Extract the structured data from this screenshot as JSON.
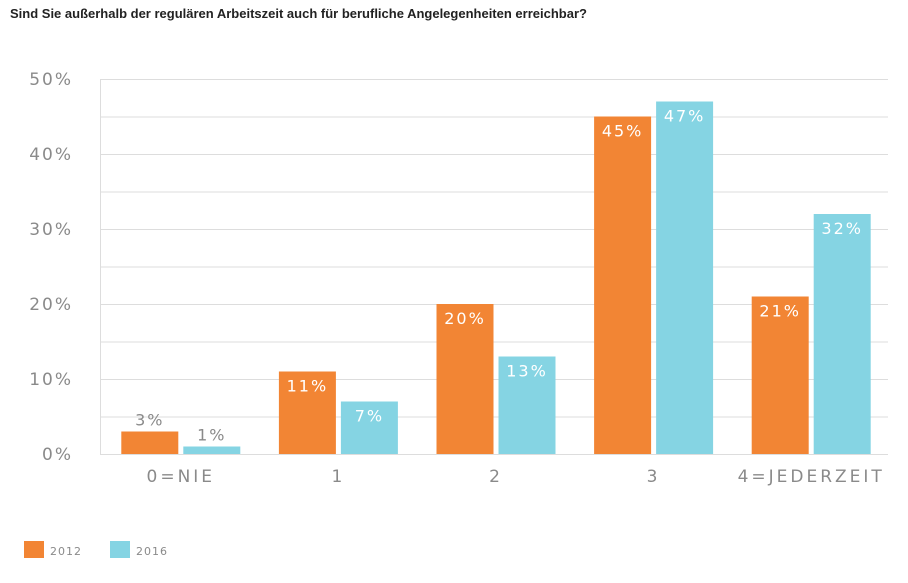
{
  "chart_data": {
    "type": "bar",
    "title": "Sind Sie außerhalb der regulären Arbeitszeit auch für berufliche Angelegenheiten erreichbar?",
    "categories": [
      "0=NIE",
      "1",
      "2",
      "3",
      "4=JEDERZEIT"
    ],
    "series": [
      {
        "name": "2012",
        "values": [
          3,
          11,
          20,
          45,
          21
        ],
        "labels": [
          "3%",
          "11%",
          "20%",
          "45%",
          "21%"
        ],
        "color": "#f28534"
      },
      {
        "name": "2016",
        "values": [
          1,
          7,
          13,
          47,
          32
        ],
        "labels": [
          "1%",
          "7%",
          "13%",
          "47%",
          "32%"
        ],
        "color": "#85d4e3"
      }
    ],
    "yticks": [
      0,
      10,
      20,
      30,
      40,
      50
    ],
    "ytick_labels": [
      "0%",
      "10%",
      "20%",
      "30%",
      "40%",
      "50%"
    ],
    "ylim": [
      0,
      50
    ],
    "grid": true,
    "legend": "bottom-left",
    "xlabel": "",
    "ylabel": ""
  },
  "colors": {
    "grid": "#dddddd",
    "axis_text": "#8a8a8a",
    "label_inside": "#ffffff",
    "label_outside": "#8a8a8a"
  }
}
